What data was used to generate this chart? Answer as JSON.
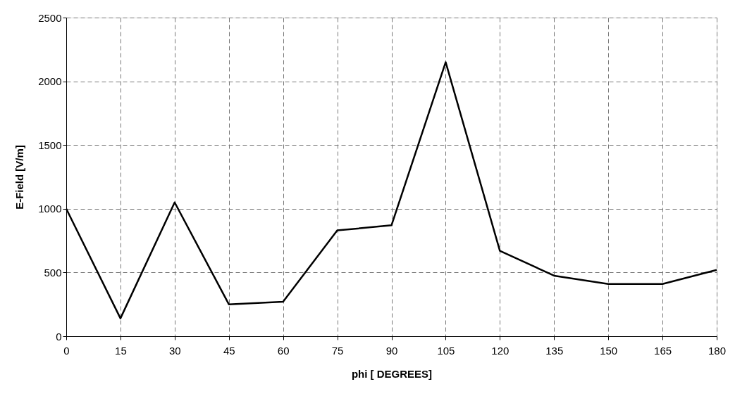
{
  "chart_data": {
    "type": "line",
    "xlabel": "phi [ DEGREES]",
    "ylabel": "E-Field [V/m]",
    "x": [
      0,
      15,
      30,
      45,
      60,
      75,
      90,
      105,
      120,
      135,
      150,
      165,
      180
    ],
    "series": [
      {
        "color": "#000000",
        "values": [
          1000,
          140,
          1050,
          250,
          270,
          830,
          870,
          2150,
          670,
          475,
          410,
          410,
          520
        ]
      }
    ],
    "xlim": [
      0,
      180
    ],
    "xticks": [
      0,
      15,
      30,
      45,
      60,
      75,
      90,
      105,
      120,
      135,
      150,
      165,
      180
    ],
    "ylim": [
      0,
      2500
    ],
    "yticks": [
      0,
      500,
      1000,
      1500,
      2000,
      2500
    ],
    "grid": true,
    "marker": "none",
    "line_style": "solid"
  }
}
